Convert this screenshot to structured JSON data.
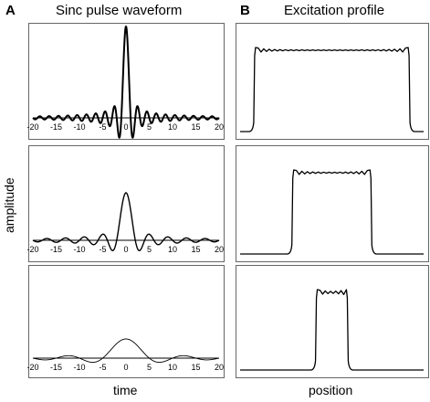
{
  "panel_a": {
    "letter": "A",
    "title": "Sinc pulse waveform"
  },
  "panel_b": {
    "letter": "B",
    "title": "Excitation profile"
  },
  "labels": {
    "y": "amplitude",
    "x_left": "time",
    "x_right": "position"
  },
  "chart_data": [
    {
      "type": "line",
      "title": "Sinc pulse waveform",
      "xlabel": "time",
      "ylabel": "amplitude",
      "x_ticks": [
        "-20",
        "-15",
        "-10",
        "-5",
        "0",
        "5",
        "10",
        "15",
        "20"
      ],
      "xlim": [
        -20,
        20
      ],
      "grid": false,
      "series": [
        {
          "x_range": [
            -20,
            20
          ],
          "function": "sinc",
          "lobe_width": 1,
          "peak": 1.0
        },
        {
          "x_range": [
            -20,
            20
          ],
          "function": "sinc",
          "lobe_width": 2,
          "peak": 0.5
        },
        {
          "x_range": [
            -20,
            20
          ],
          "function": "sinc",
          "lobe_width": 5,
          "peak": 0.2
        }
      ]
    },
    {
      "type": "line",
      "title": "Excitation profile",
      "xlabel": "position",
      "ylabel": "amplitude",
      "grid": false,
      "series": [
        {
          "profile": "rect",
          "relative_width": 0.84
        },
        {
          "profile": "rect",
          "relative_width": 0.42
        },
        {
          "profile": "rect",
          "relative_width": 0.16
        }
      ]
    }
  ]
}
